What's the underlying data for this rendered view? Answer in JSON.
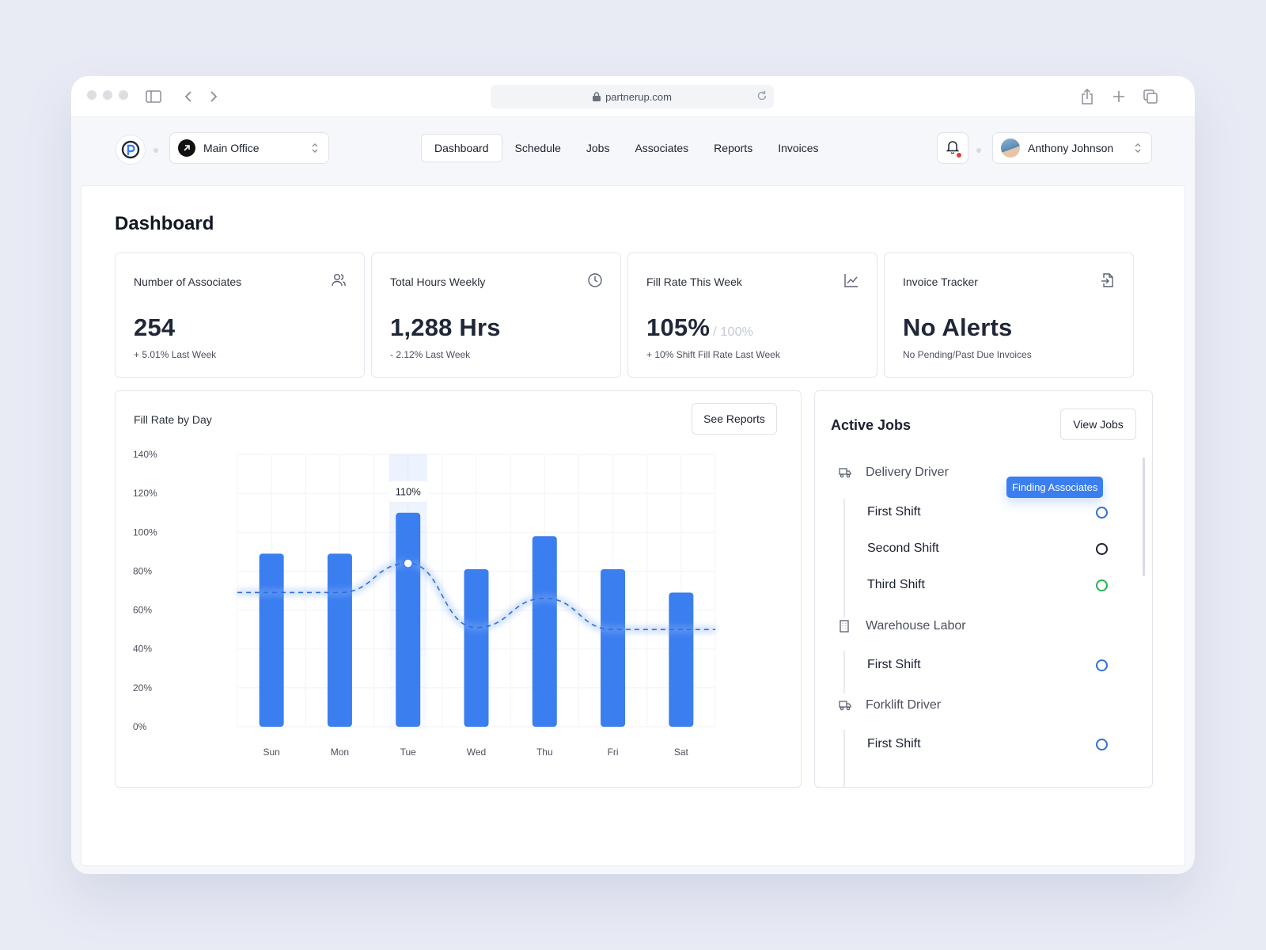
{
  "browser": {
    "url": "partnerup.com"
  },
  "header": {
    "office": "Main Office",
    "nav": [
      "Dashboard",
      "Schedule",
      "Jobs",
      "Associates",
      "Reports",
      "Invoices"
    ],
    "active_tab": "Dashboard",
    "user": "Anthony Johnson"
  },
  "page": {
    "title": "Dashboard"
  },
  "stats": [
    {
      "label": "Number of Associates",
      "value": "254",
      "suffix": "",
      "sub": "+ 5.01% Last Week",
      "icon": "users-icon"
    },
    {
      "label": "Total Hours Weekly",
      "value": "1,288 Hrs",
      "suffix": "",
      "sub": "- 2.12% Last Week",
      "icon": "clock-icon"
    },
    {
      "label": "Fill Rate This Week",
      "value": "105%",
      "suffix": "/ 100%",
      "sub": "+ 10% Shift Fill Rate Last Week",
      "icon": "line-chart-icon"
    },
    {
      "label": "Invoice Tracker",
      "value": "No Alerts",
      "suffix": "",
      "sub": "No Pending/Past Due Invoices",
      "icon": "file-export-icon"
    }
  ],
  "chart_card": {
    "title": "Fill Rate by Day",
    "button": "See Reports"
  },
  "chart_data": {
    "type": "bar",
    "title": "Fill Rate by Day",
    "categories": [
      "Sun",
      "Mon",
      "Tue",
      "Wed",
      "Thu",
      "Fri",
      "Sat"
    ],
    "series": [
      {
        "type": "bar",
        "values": [
          89,
          89,
          110,
          81,
          98,
          81,
          69
        ]
      },
      {
        "type": "line",
        "style": "dashed",
        "values": [
          69,
          69,
          84,
          51,
          66,
          50,
          50
        ]
      }
    ],
    "ylim": [
      0,
      140
    ],
    "yticks": [
      "0%",
      "20%",
      "40%",
      "60%",
      "80%",
      "100%",
      "120%",
      "140%"
    ],
    "highlight": {
      "category": "Tue",
      "label": "110%"
    },
    "grid": true,
    "colors": {
      "bar": "#3b7ef0",
      "line": "#2f6fe0"
    }
  },
  "jobs": {
    "title": "Active Jobs",
    "button": "View Jobs",
    "badge": "Finding Associates",
    "groups": [
      {
        "name": "Delivery Driver",
        "icon": "truck-icon",
        "shifts": [
          {
            "name": "First Shift",
            "status_color": "#2f6fe0"
          },
          {
            "name": "Second Shift",
            "status_color": "#1b2130"
          },
          {
            "name": "Third Shift",
            "status_color": "#22b455"
          }
        ]
      },
      {
        "name": "Warehouse Labor",
        "icon": "building-icon",
        "shifts": [
          {
            "name": "First Shift",
            "status_color": "#2f6fe0"
          }
        ]
      },
      {
        "name": "Forklift Driver",
        "icon": "truck-icon",
        "shifts": [
          {
            "name": "First Shift",
            "status_color": "#2f6fe0"
          }
        ]
      }
    ]
  }
}
